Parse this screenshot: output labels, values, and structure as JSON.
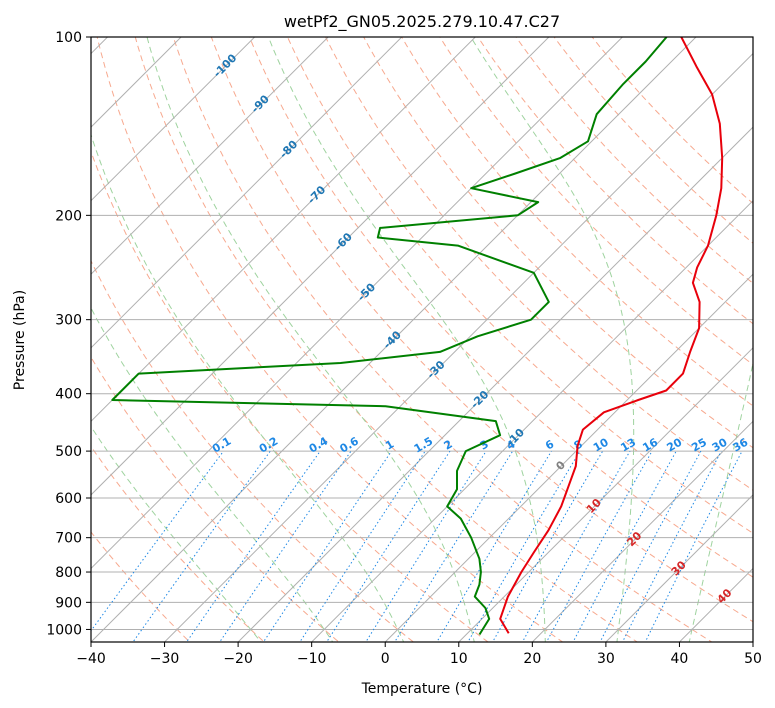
{
  "chart_data": {
    "type": "line",
    "title": "wetPf2_GN05.2025.279.10.47.C27",
    "xlabel": "Temperature (°C)",
    "ylabel": "Pressure (hPa)",
    "xlim": [
      -40,
      50
    ],
    "ylim": [
      1050,
      100
    ],
    "y_scale": "log",
    "x_ticks": [
      -40,
      -30,
      -20,
      -10,
      0,
      10,
      20,
      30,
      40,
      50
    ],
    "y_ticks": [
      1000,
      900,
      800,
      700,
      600,
      500,
      400,
      300,
      200,
      100
    ],
    "y_tick_labels": [
      "1000",
      "900",
      "800",
      "700",
      "600",
      "500",
      "400",
      "300",
      "200",
      "100"
    ],
    "grid": true,
    "skew_degrees": 45,
    "series": [
      {
        "color": "#e8000b",
        "points": [
          [
            15.6,
            1015
          ],
          [
            12.5,
            960
          ],
          [
            10.5,
            880
          ],
          [
            9.0,
            800
          ],
          [
            8.0,
            740
          ],
          [
            7.0,
            680
          ],
          [
            5.5,
            620
          ],
          [
            4.0,
            580
          ],
          [
            2.0,
            530
          ],
          [
            -0.5,
            490
          ],
          [
            -2.0,
            460
          ],
          [
            -1.5,
            430
          ],
          [
            1.5,
            410
          ],
          [
            4.0,
            395
          ],
          [
            4.0,
            370
          ],
          [
            2.0,
            340
          ],
          [
            0.0,
            310
          ],
          [
            -3.5,
            280
          ],
          [
            -7.0,
            260
          ],
          [
            -8.5,
            245
          ],
          [
            -10.0,
            225
          ],
          [
            -13.0,
            200
          ],
          [
            -16.0,
            180
          ],
          [
            -20.0,
            160
          ],
          [
            -25.0,
            140
          ],
          [
            -30.0,
            125
          ],
          [
            -36.0,
            112
          ],
          [
            -42.0,
            100
          ]
        ]
      },
      {
        "color": "#008000",
        "points": [
          [
            11.8,
            1020
          ],
          [
            11.0,
            960
          ],
          [
            9.0,
            920
          ],
          [
            6.0,
            880
          ],
          [
            5.0,
            840
          ],
          [
            3.5,
            800
          ],
          [
            1.5,
            760
          ],
          [
            -2.5,
            700
          ],
          [
            -6.5,
            650
          ],
          [
            -10.0,
            620
          ],
          [
            -11.0,
            580
          ],
          [
            -13.5,
            540
          ],
          [
            -15.0,
            500
          ],
          [
            -12.5,
            470
          ],
          [
            -15.0,
            445
          ],
          [
            -32.0,
            420
          ],
          [
            -70.0,
            410
          ],
          [
            -70.0,
            370
          ],
          [
            -44.0,
            355
          ],
          [
            -32.0,
            340
          ],
          [
            -29.0,
            320
          ],
          [
            -24.0,
            300
          ],
          [
            -24.0,
            280
          ],
          [
            -30.0,
            250
          ],
          [
            -44.0,
            225
          ],
          [
            -56.0,
            218
          ],
          [
            -57.0,
            210
          ],
          [
            -40.0,
            200
          ],
          [
            -39.0,
            190
          ],
          [
            -50.0,
            180
          ],
          [
            -46.0,
            170
          ],
          [
            -42.0,
            160
          ],
          [
            -40.5,
            150
          ],
          [
            -43.0,
            135
          ],
          [
            -43.5,
            120
          ],
          [
            -43.5,
            110
          ],
          [
            -44.0,
            100
          ]
        ]
      }
    ],
    "dry_adiabats_C": [
      -30,
      -20,
      -10,
      0,
      10,
      20,
      30,
      40,
      50,
      60,
      70,
      80,
      90,
      100,
      110,
      120,
      130,
      140,
      150
    ],
    "moist_adiabats_C": [
      -20,
      -10,
      0,
      10,
      20,
      30,
      40,
      50
    ],
    "mixing_ratio_g_kg": [
      0.1,
      0.2,
      0.4,
      0.6,
      1,
      1.5,
      2,
      3,
      4,
      6,
      8,
      10,
      13,
      16,
      20,
      25,
      30,
      36
    ],
    "mixing_ratio_labels": [
      "0.1",
      "0.2",
      "0.4",
      "0.6",
      "1",
      "1.5",
      "2",
      "3",
      "4",
      "6",
      "8",
      "10",
      "13",
      "16",
      "20",
      "25",
      "30",
      "36"
    ],
    "isotherm_labels": [
      {
        "text": "-100",
        "T": -100,
        "p": 112
      },
      {
        "text": "-90",
        "T": -90,
        "p": 130
      },
      {
        "text": "-80",
        "T": -80,
        "p": 155
      },
      {
        "text": "-70",
        "T": -70,
        "p": 185
      },
      {
        "text": "-60",
        "T": -60,
        "p": 222
      },
      {
        "text": "-50",
        "T": -50,
        "p": 270
      },
      {
        "text": "-40",
        "T": -40,
        "p": 325
      },
      {
        "text": "-30",
        "T": -30,
        "p": 365
      },
      {
        "text": "-20",
        "T": -20,
        "p": 410
      },
      {
        "text": "-10",
        "T": -10,
        "p": 475
      },
      {
        "text": "0",
        "T": 0,
        "p": 530
      },
      {
        "text": "10",
        "T": 10,
        "p": 620
      },
      {
        "text": "20",
        "T": 20,
        "p": 705
      },
      {
        "text": "30",
        "T": 30,
        "p": 790
      },
      {
        "text": "40",
        "T": 40,
        "p": 880
      }
    ],
    "isotherm_label_colors": {
      "cold": "#1f77b4",
      "zero": "#808080",
      "warm": "#d62728"
    },
    "colors": {
      "isotherm": "#b0b0b0",
      "pressure_grid": "#b0b0b0",
      "dry_adiabat": "#f7a98f",
      "moist_adiabat": "#9fd39f",
      "mixing_ratio": "#1e88e5",
      "mixing_ratio_label": "#1e88e5",
      "mixing_ratio_label_level_hPa": 500
    }
  }
}
